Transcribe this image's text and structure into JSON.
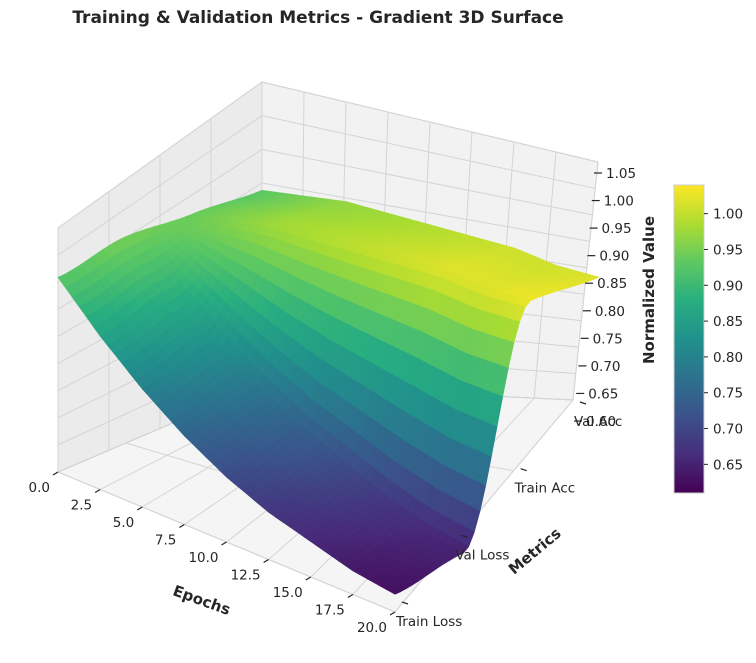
{
  "chart_data": {
    "type": "surface",
    "title": "Training & Validation Metrics - Gradient 3D Surface",
    "xlabel": "Epochs",
    "ylabel": "Metrics",
    "zlabel": "Normalized Value",
    "colormap": "viridis",
    "xlim": [
      0,
      20
    ],
    "zlim": [
      0.6,
      1.05
    ],
    "x_ticks": [
      "0.0",
      "2.5",
      "5.0",
      "7.5",
      "10.0",
      "12.5",
      "15.0",
      "17.5",
      "20.0"
    ],
    "y_ticks": [
      "Train Loss",
      "Val Loss",
      "Train Acc",
      "Val Acc"
    ],
    "z_ticks": [
      "0.60",
      "0.65",
      "0.70",
      "0.75",
      "0.80",
      "0.85",
      "0.90",
      "0.95",
      "1.00",
      "1.05"
    ],
    "colorbar_ticks": [
      "0.65",
      "0.70",
      "0.75",
      "0.80",
      "0.85",
      "0.90",
      "0.95",
      "1.00"
    ],
    "colorbar_range": [
      0.61,
      1.04
    ],
    "grid": true,
    "x": [
      0,
      2.5,
      5,
      7.5,
      10,
      12.5,
      15,
      17.5,
      20
    ],
    "series": [
      {
        "name": "Train Loss",
        "values": [
          0.93,
          0.86,
          0.8,
          0.75,
          0.71,
          0.68,
          0.66,
          0.64,
          0.63
        ]
      },
      {
        "name": "Val Loss",
        "values": [
          0.95,
          0.89,
          0.83,
          0.78,
          0.74,
          0.71,
          0.68,
          0.66,
          0.65
        ]
      },
      {
        "name": "Train Acc",
        "values": [
          0.94,
          0.96,
          0.98,
          0.99,
          1.0,
          1.01,
          1.02,
          1.02,
          1.03
        ]
      },
      {
        "name": "Val Acc",
        "values": [
          0.93,
          0.95,
          0.97,
          0.98,
          0.99,
          1.0,
          1.01,
          1.01,
          1.02
        ]
      }
    ]
  }
}
